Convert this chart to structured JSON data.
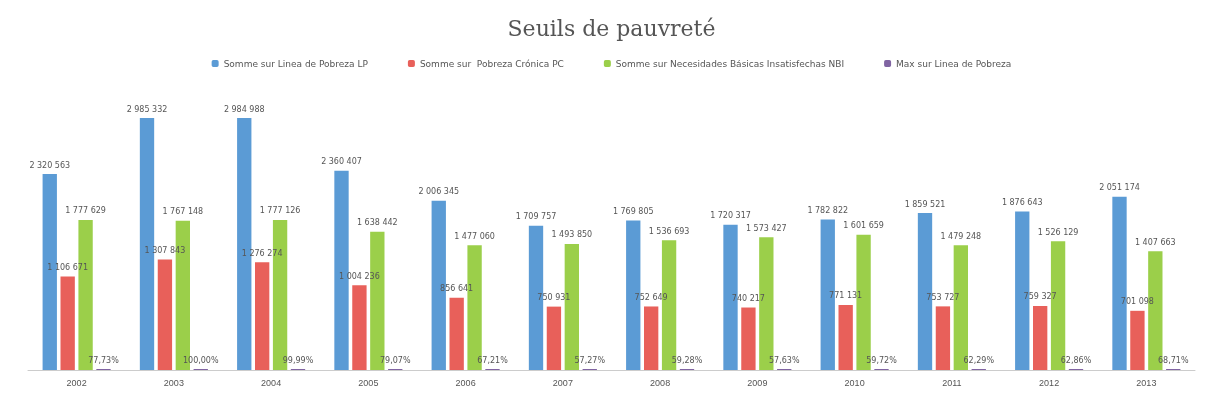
{
  "chart_data": {
    "type": "bar",
    "title": "Seuils de pauvreté",
    "categories": [
      "2002",
      "2003",
      "2004",
      "2005",
      "2006",
      "2007",
      "2008",
      "2009",
      "2010",
      "2011",
      "2012",
      "2013"
    ],
    "series": [
      {
        "name": "Somme sur Linea de Pobreza LP",
        "color": "#5b9bd5",
        "values": [
          2320563,
          2985332,
          2984988,
          2360407,
          2006345,
          1709757,
          1769805,
          1720317,
          1782822,
          1859521,
          1876643,
          2051174
        ],
        "value_labels": [
          "2 320 563",
          "2 985 332",
          "2 984 988",
          "2 360 407",
          "2 006 345",
          "1 709 757",
          "1 769 805",
          "1 720 317",
          "1 782 822",
          "1 859 521",
          "1 876 643",
          "2 051 174"
        ]
      },
      {
        "name": "Somme sur  Pobreza Crónica PC",
        "color": "#e8605a",
        "values": [
          1106671,
          1307843,
          1276274,
          1004236,
          856641,
          750931,
          752649,
          740217,
          771131,
          753727,
          759327,
          701098
        ],
        "value_labels": [
          "1 106 671",
          "1 307 843",
          "1 276 274",
          "1 004 236",
          "856 641",
          "750 931",
          "752 649",
          "740 217",
          "771 131",
          "753 727",
          "759 327",
          "701 098"
        ]
      },
      {
        "name": "Somme sur Necesidades Básicas Insatisfechas NBI",
        "color": "#9bcf4a",
        "values": [
          1777629,
          1767148,
          1777126,
          1638442,
          1477060,
          1493850,
          1536693,
          1573427,
          1601659,
          1479248,
          1526129,
          1407663
        ],
        "value_labels": [
          "1 777 629",
          "1 767 148",
          "1 777 126",
          "1 638 442",
          "1 477 060",
          "1 493 850",
          "1 536 693",
          "1 573 427",
          "1 601 659",
          "1 479 248",
          "1 526 129",
          "1 407 663"
        ]
      },
      {
        "name": "Max sur Linea de Pobreza",
        "color": "#8064a2",
        "values": [
          77.73,
          100.0,
          99.99,
          79.07,
          67.21,
          57.27,
          59.28,
          57.63,
          59.72,
          62.29,
          62.86,
          68.71
        ],
        "value_labels": [
          "77,73%",
          "100,00%",
          "99,99%",
          "79,07%",
          "67,21%",
          "57,27%",
          "59,28%",
          "57,63%",
          "59,72%",
          "62,29%",
          "62,86%",
          "68,71%"
        ]
      }
    ],
    "legend": "top",
    "grid": false,
    "tick_labels": "x"
  }
}
